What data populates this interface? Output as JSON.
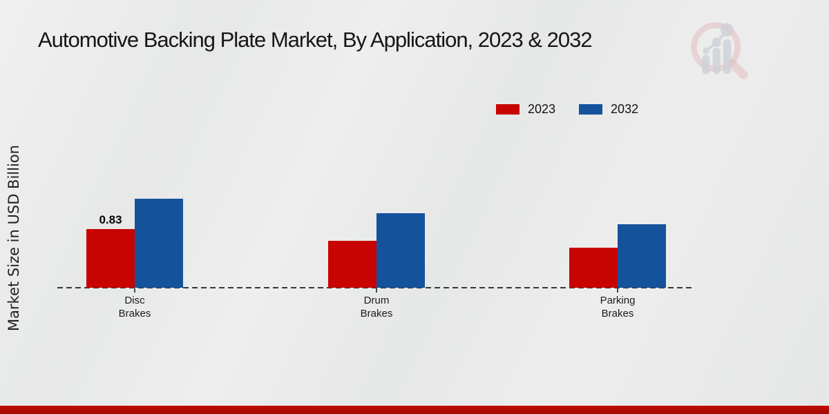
{
  "header": {
    "title": "Automotive Backing Plate Market, By Application, 2023 & 2032"
  },
  "watermark": {
    "name": "market-research-future-logo",
    "ring_color": "#dfb2b6",
    "bars_color": "#caced4"
  },
  "footer": {
    "bar_color": "#b00b02"
  },
  "chart_data": {
    "type": "bar",
    "title": "Automotive Backing Plate Market, By Application, 2023 & 2032",
    "xlabel": "",
    "ylabel": "Market Size in USD Billion",
    "categories": [
      "Disc Brakes",
      "Drum Brakes",
      "Parking Brakes"
    ],
    "series": [
      {
        "name": "2023",
        "color": "#c70402",
        "values": [
          0.83,
          0.67,
          0.57
        ]
      },
      {
        "name": "2032",
        "color": "#15529c",
        "values": [
          1.26,
          1.06,
          0.9
        ]
      }
    ],
    "ylim": [
      0,
      1.4
    ],
    "grid": false,
    "axis_ticks_labeled": false,
    "legend_position": "top-right",
    "baseline_style": "dashed",
    "data_labels": [
      {
        "series_index": 0,
        "category_index": 0,
        "text": "0.83"
      }
    ]
  }
}
